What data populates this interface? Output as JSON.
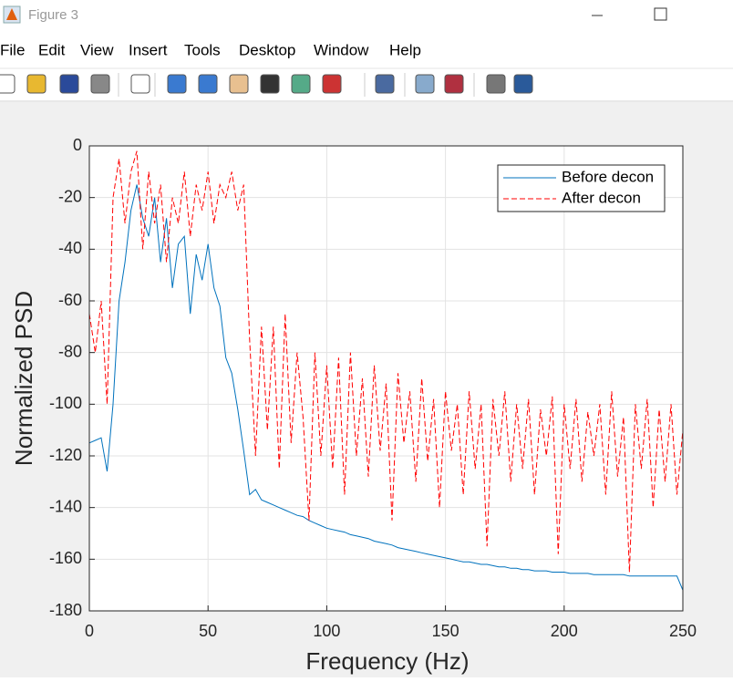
{
  "window": {
    "title": "Figure 3",
    "menu": [
      "File",
      "Edit",
      "View",
      "Insert",
      "Tools",
      "Desktop",
      "Window",
      "Help"
    ]
  },
  "chart_data": {
    "type": "line",
    "xlabel": "Frequency (Hz)",
    "ylabel": "Normalized PSD",
    "x": [
      0,
      2.5,
      5,
      7.5,
      10,
      12.5,
      15,
      17.5,
      20,
      22.5,
      25,
      27.5,
      30,
      32.5,
      35,
      37.5,
      40,
      42.5,
      45,
      47.5,
      50,
      52.5,
      55,
      57.5,
      60,
      62.5,
      65,
      67.5,
      70,
      72.5,
      75,
      77.5,
      80,
      82.5,
      85,
      87.5,
      90,
      92.5,
      95,
      97.5,
      100,
      102.5,
      105,
      107.5,
      110,
      112.5,
      115,
      117.5,
      120,
      122.5,
      125,
      127.5,
      130,
      132.5,
      135,
      137.5,
      140,
      142.5,
      145,
      147.5,
      150,
      152.5,
      155,
      157.5,
      160,
      162.5,
      165,
      167.5,
      170,
      172.5,
      175,
      177.5,
      180,
      182.5,
      185,
      187.5,
      190,
      192.5,
      195,
      197.5,
      200,
      202.5,
      205,
      207.5,
      210,
      212.5,
      215,
      217.5,
      220,
      222.5,
      225,
      227.5,
      230,
      232.5,
      235,
      237.5,
      240,
      242.5,
      245,
      247.5,
      250
    ],
    "series": [
      {
        "name": "Before decon",
        "color": "#0072bd",
        "dash": "solid",
        "values": [
          -115,
          -114,
          -113,
          -126,
          -100,
          -60,
          -45,
          -25,
          -15,
          -28,
          -35,
          -20,
          -45,
          -28,
          -55,
          -38,
          -35,
          -65,
          -42,
          -52,
          -38,
          -55,
          -62,
          -82,
          -88,
          -102,
          -118,
          -135,
          -133,
          -137,
          -138,
          -139,
          -140,
          -141,
          -142,
          -143,
          -143.5,
          -145,
          -146,
          -147,
          -148,
          -148.5,
          -149,
          -149.5,
          -150.5,
          -151,
          -151.5,
          -152,
          -153,
          -153.5,
          -154,
          -154.5,
          -155.5,
          -156,
          -156.5,
          -157,
          -157.5,
          -158,
          -158.5,
          -159,
          -159.5,
          -160,
          -160.5,
          -161,
          -161,
          -161.5,
          -162,
          -162,
          -162.5,
          -163,
          -163,
          -163.5,
          -163.5,
          -164,
          -164,
          -164.5,
          -164.5,
          -164.5,
          -165,
          -165,
          -165,
          -165.5,
          -165.5,
          -165.5,
          -165.5,
          -166,
          -166,
          -166,
          -166,
          -166,
          -166,
          -166.5,
          -166.5,
          -166.5,
          -166.5,
          -166.5,
          -166.5,
          -166.5,
          -166.5,
          -166.5,
          -172
        ]
      },
      {
        "name": "After decon",
        "color": "#ff0000",
        "dash": "dashed",
        "values": [
          -65,
          -80,
          -60,
          -100,
          -20,
          -5,
          -30,
          -10,
          -2,
          -40,
          -10,
          -30,
          -15,
          -45,
          -20,
          -30,
          -10,
          -35,
          -15,
          -25,
          -10,
          -30,
          -15,
          -20,
          -10,
          -25,
          -15,
          -75,
          -120,
          -70,
          -110,
          -70,
          -125,
          -65,
          -115,
          -80,
          -105,
          -145,
          -80,
          -120,
          -85,
          -125,
          -82,
          -135,
          -80,
          -120,
          -90,
          -128,
          -85,
          -118,
          -92,
          -145,
          -88,
          -115,
          -95,
          -130,
          -90,
          -122,
          -98,
          -140,
          -95,
          -118,
          -100,
          -135,
          -95,
          -125,
          -100,
          -155,
          -98,
          -120,
          -95,
          -130,
          -100,
          -125,
          -98,
          -135,
          -102,
          -120,
          -97,
          -158,
          -100,
          -125,
          -98,
          -130,
          -103,
          -120,
          -100,
          -135,
          -95,
          -128,
          -105,
          -165,
          -100,
          -125,
          -98,
          -140,
          -102,
          -130,
          -100,
          -135,
          -110
        ]
      }
    ],
    "xlim": [
      0,
      250
    ],
    "xticks": [
      0,
      50,
      100,
      150,
      200,
      250
    ],
    "ylim": [
      -180,
      0
    ],
    "yticks": [
      -180,
      -160,
      -140,
      -120,
      -100,
      -80,
      -60,
      -40,
      -20,
      0
    ],
    "grid": true,
    "legend": "northeast"
  }
}
